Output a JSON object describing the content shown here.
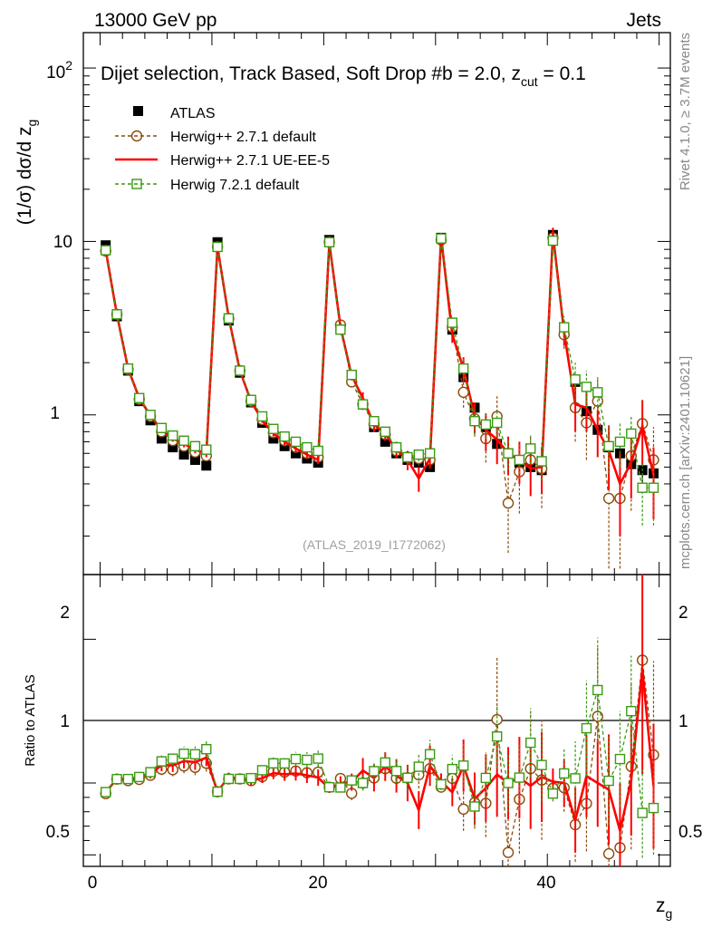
{
  "header": {
    "left": "13000 GeV pp",
    "right": "Jets"
  },
  "side_labels": {
    "rivet": "Rivet 4.1.0, ≥ 3.7M events",
    "mcplots": "mcplots.cern.ch [arXiv:2401.10621]"
  },
  "plot_title": "Dijet selection, Track Based, Soft Drop #b = 2.0, z_cut = 0.1",
  "analysis_tag": "(ATLAS_2019_I1772062)",
  "colors": {
    "atlas": "#000000",
    "herwig_default": "#8b4b0a",
    "herwig_ue": "#ff0000",
    "herwig7": "#3a9a12"
  },
  "chart_data": [
    {
      "type": "scatter",
      "panel": "main",
      "title": "Dijet selection, Track Based, Soft Drop #b = 2.0, z_cut = 0.1",
      "xlabel": "z_g",
      "ylabel": "(1/σ) dσ/d z_g",
      "yscale": "log",
      "xlim": [
        -1.5,
        51
      ],
      "ylim": [
        0.12,
        160
      ],
      "y_tick_labels": [
        "1",
        "10",
        "10^2"
      ],
      "x": [
        0.5,
        1.5,
        2.5,
        3.5,
        4.5,
        5.5,
        6.5,
        7.5,
        8.5,
        9.5,
        10.5,
        11.5,
        12.5,
        13.5,
        14.5,
        15.5,
        16.5,
        17.5,
        18.5,
        19.5,
        20.5,
        21.5,
        22.5,
        23.5,
        24.5,
        25.5,
        26.5,
        27.5,
        28.5,
        29.5,
        30.5,
        31.5,
        32.5,
        33.5,
        34.5,
        35.5,
        36.5,
        37.5,
        38.5,
        39.5,
        40.5,
        41.5,
        42.5,
        43.5,
        44.5,
        45.5,
        46.5,
        47.5,
        48.5,
        49.5
      ],
      "series": [
        {
          "name": "ATLAS",
          "marker": "filled-square",
          "values": [
            9.5,
            3.7,
            1.8,
            1.2,
            0.93,
            0.73,
            0.65,
            0.59,
            0.55,
            0.51,
            9.9,
            3.5,
            1.75,
            1.18,
            0.9,
            0.73,
            0.66,
            0.6,
            0.56,
            0.53,
            10.2,
            3.2,
            1.67,
            1.15,
            0.85,
            0.7,
            0.6,
            0.55,
            0.53,
            0.5,
            10.5,
            3.1,
            1.65,
            1.1,
            0.85,
            0.68,
            0.6,
            0.53,
            0.5,
            0.48,
            10.9,
            3.0,
            1.55,
            1.05,
            0.82,
            0.65,
            0.6,
            0.52,
            0.48,
            0.46
          ],
          "errors": [
            0.2,
            0.08,
            0.04,
            0.03,
            0.02,
            0.02,
            0.02,
            0.02,
            0.02,
            0.02,
            0.2,
            0.08,
            0.04,
            0.03,
            0.02,
            0.02,
            0.02,
            0.02,
            0.02,
            0.02,
            0.2,
            0.08,
            0.04,
            0.03,
            0.02,
            0.02,
            0.02,
            0.02,
            0.02,
            0.02,
            0.3,
            0.1,
            0.08,
            0.06,
            0.05,
            0.05,
            0.05,
            0.05,
            0.05,
            0.05,
            0.3,
            0.2,
            0.15,
            0.12,
            0.1,
            0.1,
            0.1,
            0.1,
            0.1,
            0.1
          ]
        },
        {
          "name": "Herwig++ 2.7.1 default",
          "marker": "open-circle",
          "line": "dashed",
          "values": [
            8.8,
            3.8,
            1.83,
            1.23,
            0.98,
            0.8,
            0.71,
            0.66,
            0.61,
            0.58,
            9.3,
            3.6,
            1.8,
            1.2,
            0.94,
            0.79,
            0.71,
            0.65,
            0.6,
            0.57,
            9.9,
            3.3,
            1.55,
            1.15,
            0.88,
            0.77,
            0.62,
            0.57,
            0.56,
            0.55,
            10.2,
            3.2,
            1.35,
            0.95,
            0.73,
            0.98,
            0.31,
            0.47,
            0.55,
            0.49,
            10.5,
            2.9,
            1.1,
            0.9,
            1.2,
            0.33,
            0.33,
            0.58,
            0.89,
            0.55
          ],
          "errors": [
            0.2,
            0.1,
            0.05,
            0.04,
            0.03,
            0.03,
            0.03,
            0.03,
            0.03,
            0.03,
            0.2,
            0.1,
            0.05,
            0.04,
            0.03,
            0.03,
            0.03,
            0.03,
            0.03,
            0.03,
            0.2,
            0.1,
            0.08,
            0.06,
            0.05,
            0.05,
            0.05,
            0.05,
            0.05,
            0.05,
            0.4,
            0.3,
            0.25,
            0.2,
            0.2,
            0.3,
            0.15,
            0.2,
            0.2,
            0.2,
            0.6,
            0.5,
            0.4,
            0.35,
            0.4,
            0.2,
            0.2,
            0.3,
            0.35,
            0.3
          ]
        },
        {
          "name": "Herwig++ 2.7.1 UE-EE-5",
          "marker": "none",
          "line": "solid",
          "values": [
            8.9,
            3.8,
            1.85,
            1.25,
            0.99,
            0.82,
            0.73,
            0.68,
            0.63,
            0.6,
            9.3,
            3.65,
            1.8,
            1.2,
            0.93,
            0.78,
            0.7,
            0.64,
            0.59,
            0.55,
            9.8,
            3.2,
            1.68,
            1.25,
            0.88,
            0.78,
            0.63,
            0.55,
            0.43,
            0.56,
            10.6,
            2.9,
            1.85,
            0.98,
            0.82,
            0.72,
            0.6,
            0.55,
            0.49,
            0.5,
            11.0,
            3.0,
            1.15,
            1.1,
            0.82,
            0.62,
            0.4,
            0.53,
            0.86,
            0.45
          ],
          "errors": [
            0.2,
            0.1,
            0.05,
            0.04,
            0.03,
            0.03,
            0.03,
            0.03,
            0.03,
            0.03,
            0.2,
            0.1,
            0.05,
            0.04,
            0.03,
            0.03,
            0.03,
            0.03,
            0.03,
            0.03,
            0.3,
            0.15,
            0.1,
            0.1,
            0.08,
            0.07,
            0.07,
            0.07,
            0.07,
            0.07,
            0.6,
            0.3,
            0.3,
            0.2,
            0.2,
            0.2,
            0.15,
            0.15,
            0.15,
            0.15,
            1.0,
            0.5,
            0.35,
            0.3,
            0.25,
            0.25,
            0.2,
            0.2,
            0.35,
            0.2
          ]
        },
        {
          "name": "Herwig 7.2.1 default",
          "marker": "open-square",
          "line": "dashed",
          "values": [
            8.9,
            3.8,
            1.85,
            1.25,
            1.0,
            0.84,
            0.76,
            0.71,
            0.66,
            0.63,
            9.3,
            3.6,
            1.8,
            1.22,
            0.98,
            0.83,
            0.75,
            0.7,
            0.65,
            0.62,
            9.9,
            3.1,
            1.7,
            1.15,
            0.92,
            0.8,
            0.65,
            0.57,
            0.59,
            0.6,
            10.4,
            3.4,
            1.85,
            0.92,
            0.88,
            0.9,
            0.6,
            0.55,
            0.64,
            0.54,
            10.1,
            3.2,
            1.6,
            1.45,
            1.35,
            0.66,
            0.7,
            0.78,
            0.38,
            0.38
          ],
          "errors": [
            0.2,
            0.1,
            0.05,
            0.04,
            0.03,
            0.03,
            0.03,
            0.03,
            0.03,
            0.03,
            0.2,
            0.1,
            0.05,
            0.04,
            0.03,
            0.03,
            0.03,
            0.03,
            0.03,
            0.03,
            0.2,
            0.1,
            0.08,
            0.06,
            0.05,
            0.05,
            0.05,
            0.05,
            0.05,
            0.05,
            0.4,
            0.3,
            0.25,
            0.15,
            0.15,
            0.15,
            0.12,
            0.12,
            0.12,
            0.12,
            0.6,
            0.5,
            0.4,
            0.35,
            0.3,
            0.2,
            0.2,
            0.2,
            0.15,
            0.15
          ]
        }
      ],
      "legend": [
        "ATLAS",
        "Herwig++ 2.7.1 default",
        "Herwig++ 2.7.1 UE-EE-5",
        "Herwig 7.2.1 default"
      ],
      "legend_position": "top-left"
    },
    {
      "type": "line",
      "panel": "ratio",
      "ylabel": "Ratio to ATLAS",
      "xlabel": "z_g",
      "ylim": [
        0.42,
        2.45
      ],
      "y_tick_labels": [
        "0.5",
        "1",
        "2"
      ],
      "x_tick_labels": [
        "0",
        "20",
        "40"
      ],
      "reference_line": 1
    }
  ]
}
